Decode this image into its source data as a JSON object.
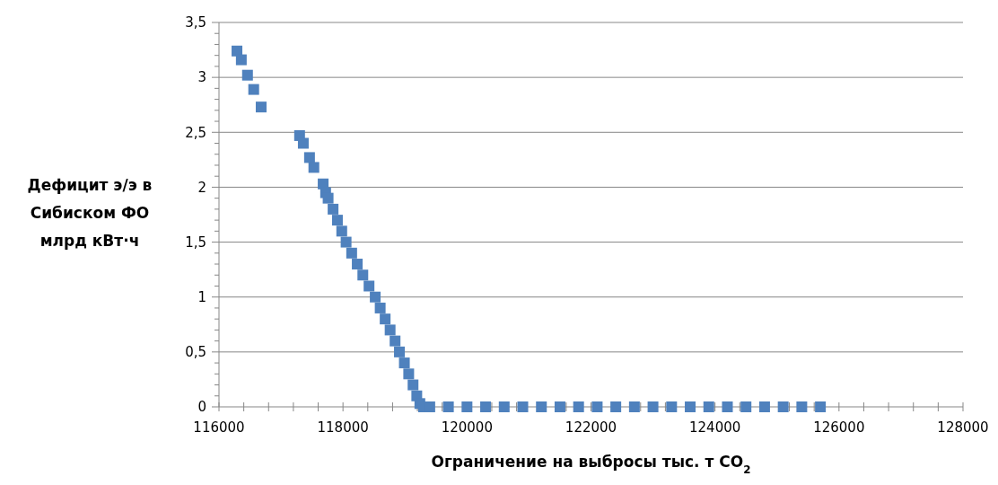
{
  "chart_data": {
    "type": "scatter",
    "xlabel": "Ограничение на выбросы тыс. т CO$_{2}$",
    "ylabel": "Дефицит э/э в\nСибиском ФО\nмлрд кВт·ч",
    "marker": "square",
    "grid": "y",
    "xlim": [
      116000,
      128000
    ],
    "ylim": [
      0,
      3.5
    ],
    "xticks": [
      116000,
      {
        "value": 116400,
        "label": null
      },
      {
        "value": 116800,
        "label": null
      },
      {
        "value": 117200,
        "label": null
      },
      {
        "value": 117600,
        "label": null
      },
      118000,
      {
        "value": 118400,
        "label": null
      },
      {
        "value": 118800,
        "label": null
      },
      {
        "value": 119200,
        "label": null
      },
      {
        "value": 119600,
        "label": null
      },
      120000,
      {
        "value": 120400,
        "label": null
      },
      {
        "value": 120800,
        "label": null
      },
      {
        "value": 121200,
        "label": null
      },
      {
        "value": 121600,
        "label": null
      },
      122000,
      {
        "value": 122400,
        "label": null
      },
      {
        "value": 122800,
        "label": null
      },
      {
        "value": 123200,
        "label": null
      },
      {
        "value": 123600,
        "label": null
      },
      124000,
      {
        "value": 124400,
        "label": null
      },
      {
        "value": 124800,
        "label": null
      },
      {
        "value": 125200,
        "label": null
      },
      {
        "value": 125600,
        "label": null
      },
      126000,
      {
        "value": 126400,
        "label": null
      },
      {
        "value": 126800,
        "label": null
      },
      {
        "value": 127200,
        "label": null
      },
      {
        "value": 127600,
        "label": null
      },
      128000
    ],
    "yticks": [
      0,
      {
        "value": 0.1,
        "label": null
      },
      {
        "value": 0.2,
        "label": null
      },
      {
        "value": 0.3,
        "label": null
      },
      {
        "value": 0.4,
        "label": null
      },
      {
        "value": 0.5,
        "label": "0,5"
      },
      {
        "value": 0.6,
        "label": null
      },
      {
        "value": 0.7,
        "label": null
      },
      {
        "value": 0.8,
        "label": null
      },
      {
        "value": 0.9,
        "label": null
      },
      1,
      {
        "value": 1.1,
        "label": null
      },
      {
        "value": 1.2,
        "label": null
      },
      {
        "value": 1.3,
        "label": null
      },
      {
        "value": 1.4,
        "label": null
      },
      {
        "value": 1.5,
        "label": "1,5"
      },
      {
        "value": 1.6,
        "label": null
      },
      {
        "value": 1.7,
        "label": null
      },
      {
        "value": 1.8,
        "label": null
      },
      {
        "value": 1.9,
        "label": null
      },
      2,
      {
        "value": 2.1,
        "label": null
      },
      {
        "value": 2.2,
        "label": null
      },
      {
        "value": 2.3,
        "label": null
      },
      {
        "value": 2.4,
        "label": null
      },
      {
        "value": 2.5,
        "label": "2,5"
      },
      {
        "value": 2.6,
        "label": null
      },
      {
        "value": 2.7,
        "label": null
      },
      {
        "value": 2.8,
        "label": null
      },
      {
        "value": 2.9,
        "label": null
      },
      3,
      {
        "value": 3.1,
        "label": null
      },
      {
        "value": 3.2,
        "label": null
      },
      {
        "value": 3.3,
        "label": null
      },
      {
        "value": 3.4,
        "label": null
      },
      {
        "value": 3.5,
        "label": "3,5"
      }
    ],
    "series": [
      {
        "color": "#4f81bd",
        "x": [
          116290,
          116360,
          116460,
          116560,
          116680,
          117300,
          117360,
          117460,
          117530,
          117680,
          117720,
          117760,
          117840,
          117910,
          117980,
          118050,
          118140,
          118230,
          118320,
          118420,
          118520,
          118600,
          118680,
          118760,
          118840,
          118910,
          118990,
          119060,
          119130,
          119190,
          119240,
          119300,
          119400,
          119700,
          120000,
          120300,
          120600,
          120900,
          121200,
          121500,
          121800,
          122100,
          122400,
          122700,
          123000,
          123300,
          123600,
          123900,
          124200,
          124500,
          124800,
          125100,
          125400,
          125700
        ],
        "values": [
          3.24,
          3.16,
          3.02,
          2.89,
          2.73,
          2.47,
          2.4,
          2.27,
          2.18,
          2.03,
          1.95,
          1.9,
          1.8,
          1.7,
          1.6,
          1.5,
          1.4,
          1.3,
          1.2,
          1.1,
          1.0,
          0.9,
          0.8,
          0.7,
          0.6,
          0.5,
          0.4,
          0.3,
          0.2,
          0.1,
          0.03,
          0,
          0,
          0,
          0,
          0,
          0,
          0,
          0,
          0,
          0,
          0,
          0,
          0,
          0,
          0,
          0,
          0,
          0,
          0,
          0,
          0,
          0,
          0
        ]
      }
    ]
  }
}
